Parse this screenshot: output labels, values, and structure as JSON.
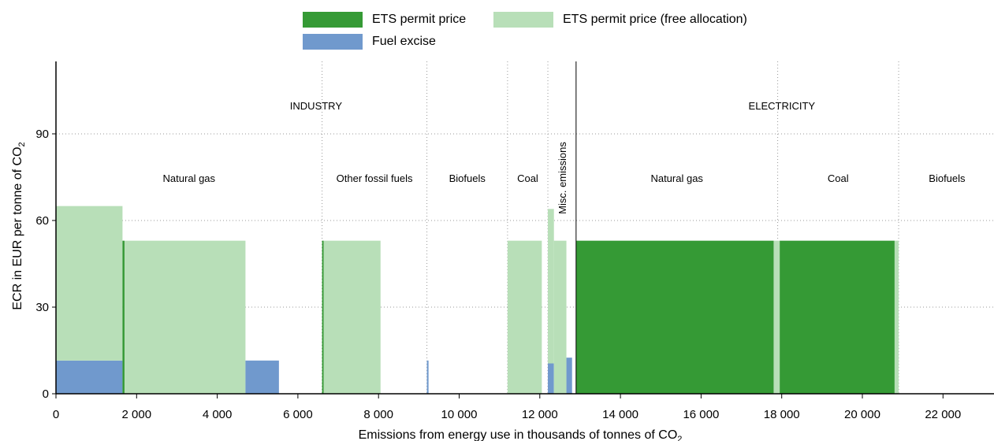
{
  "colors": {
    "ets": "#359a35",
    "ets_free": "#b8dfb8",
    "fuel_excise": "#7099cd",
    "axis": "#000000",
    "grid": "#999999"
  },
  "legend": [
    {
      "key": "ets",
      "label": "ETS permit price",
      "color": "#359a35"
    },
    {
      "key": "ets_free",
      "label": "ETS permit price (free allocation)",
      "color": "#b8dfb8"
    },
    {
      "key": "fuel_excise",
      "label": "Fuel excise",
      "color": "#7099cd"
    }
  ],
  "chart_data": {
    "type": "bar",
    "xlabel": "Emissions from energy use in thousands of tonnes of CO",
    "xlabel_sub": "2",
    "ylabel": "ECR in EUR per tonne of CO",
    "ylabel_sub": "2",
    "xlim": [
      0,
      23300
    ],
    "ylim": [
      0,
      112
    ],
    "x_ticks": [
      0,
      2000,
      4000,
      6000,
      8000,
      10000,
      12000,
      14000,
      16000,
      18000,
      20000,
      22000
    ],
    "x_tick_labels": [
      "0",
      "2 000",
      "4 000",
      "6 000",
      "8 000",
      "10 000",
      "12 000",
      "14 000",
      "16 000",
      "18 000",
      "20 000",
      "22 000"
    ],
    "y_ticks": [
      0,
      30,
      60,
      90
    ],
    "y_tick_labels": [
      "0",
      "30",
      "60",
      "90"
    ],
    "gridlines": "horizontal dotted",
    "legend_position": "top",
    "sectors": [
      {
        "label": "INDUSTRY",
        "x_start": 0,
        "x_end": 12900
      },
      {
        "label": "ELECTRICITY",
        "x_start": 12900,
        "x_end": 23300
      }
    ],
    "sector_divider_x": 12900,
    "fuel_groups": [
      {
        "label": "Natural gas",
        "x_start": 0,
        "x_end": 6600
      },
      {
        "label": "Other fossil fuels",
        "x_start": 6600,
        "x_end": 9200
      },
      {
        "label": "Biofuels",
        "x_start": 9200,
        "x_end": 11200
      },
      {
        "label": "Coal",
        "x_start": 11200,
        "x_end": 12200
      },
      {
        "label": "Misc. emissions",
        "x_start": 12200,
        "x_end": 12900,
        "vertical": true
      },
      {
        "label": "Natural gas",
        "x_start": 12900,
        "x_end": 17900
      },
      {
        "label": "Coal",
        "x_start": 17900,
        "x_end": 20900
      },
      {
        "label": "Biofuels",
        "x_start": 20900,
        "x_end": 23300
      }
    ],
    "group_dividers_x": [
      6600,
      9200,
      11200,
      12200,
      17900,
      20900
    ],
    "blocks": [
      {
        "x_start": 0,
        "x_end": 1650,
        "fuel_excise": 11.5,
        "ets": 0,
        "ets_free": 53.5
      },
      {
        "x_start": 1650,
        "x_end": 1700,
        "fuel_excise": 0,
        "ets": 53,
        "ets_free": 0
      },
      {
        "x_start": 1700,
        "x_end": 4700,
        "fuel_excise": 0,
        "ets": 0,
        "ets_free": 53
      },
      {
        "x_start": 4700,
        "x_end": 5530,
        "fuel_excise": 11.5,
        "ets": 0,
        "ets_free": 0
      },
      {
        "x_start": 6600,
        "x_end": 6640,
        "fuel_excise": 0,
        "ets": 53,
        "ets_free": 0
      },
      {
        "x_start": 6640,
        "x_end": 8050,
        "fuel_excise": 0,
        "ets": 0,
        "ets_free": 53
      },
      {
        "x_start": 9200,
        "x_end": 9240,
        "fuel_excise": 11.5,
        "ets": 0,
        "ets_free": 0
      },
      {
        "x_start": 11200,
        "x_end": 12050,
        "fuel_excise": 0,
        "ets": 0,
        "ets_free": 53
      },
      {
        "x_start": 12200,
        "x_end": 12350,
        "fuel_excise": 10.5,
        "ets": 0,
        "ets_free": 53.5
      },
      {
        "x_start": 12350,
        "x_end": 12660,
        "fuel_excise": 0,
        "ets": 0,
        "ets_free": 53
      },
      {
        "x_start": 12660,
        "x_end": 12800,
        "fuel_excise": 12.5,
        "ets": 0,
        "ets_free": 0
      },
      {
        "x_start": 12900,
        "x_end": 17800,
        "fuel_excise": 0,
        "ets": 53,
        "ets_free": 0
      },
      {
        "x_start": 17800,
        "x_end": 17950,
        "fuel_excise": 0,
        "ets": 0,
        "ets_free": 53
      },
      {
        "x_start": 17950,
        "x_end": 20800,
        "fuel_excise": 0,
        "ets": 53,
        "ets_free": 0
      },
      {
        "x_start": 20800,
        "x_end": 20900,
        "fuel_excise": 0,
        "ets": 0,
        "ets_free": 53
      }
    ]
  }
}
